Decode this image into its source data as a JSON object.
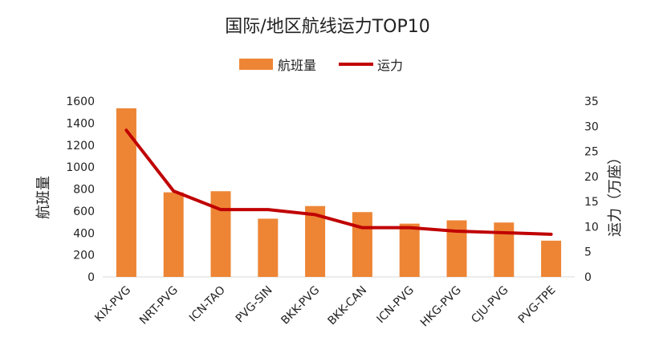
{
  "chart_data": {
    "type": "bar",
    "title": "国际/地区航线运力TOP10",
    "categories": [
      "KIX-PVG",
      "NRT-PVG",
      "ICN-TAO",
      "PVG-SIN",
      "BKK-PVG",
      "BKK-CAN",
      "ICN-PVG",
      "HKG-PVG",
      "CJU-PVG",
      "PVG-TPE"
    ],
    "series": [
      {
        "name": "航班量",
        "type": "bar",
        "axis": "left",
        "color": "#ED8535",
        "values": [
          1535,
          770,
          780,
          530,
          645,
          590,
          485,
          515,
          495,
          330
        ]
      },
      {
        "name": "运力",
        "type": "line",
        "axis": "right",
        "color": "#C00000",
        "values": [
          29.2,
          17.1,
          13.4,
          13.4,
          12.4,
          9.8,
          9.8,
          9.1,
          8.8,
          8.5
        ]
      }
    ],
    "ylabel_left": "航班量",
    "ylabel_right": "运力（万座）",
    "ylim_left": [
      0,
      1600
    ],
    "ylim_right": [
      0,
      35
    ],
    "yticks_left": [
      "0",
      "200",
      "400",
      "600",
      "800",
      "1000",
      "1200",
      "1400",
      "1600"
    ],
    "yticks_right": [
      "0",
      "5",
      "10",
      "15",
      "20",
      "25",
      "30",
      "35"
    ],
    "grid": false,
    "legend_position": "top-center"
  }
}
